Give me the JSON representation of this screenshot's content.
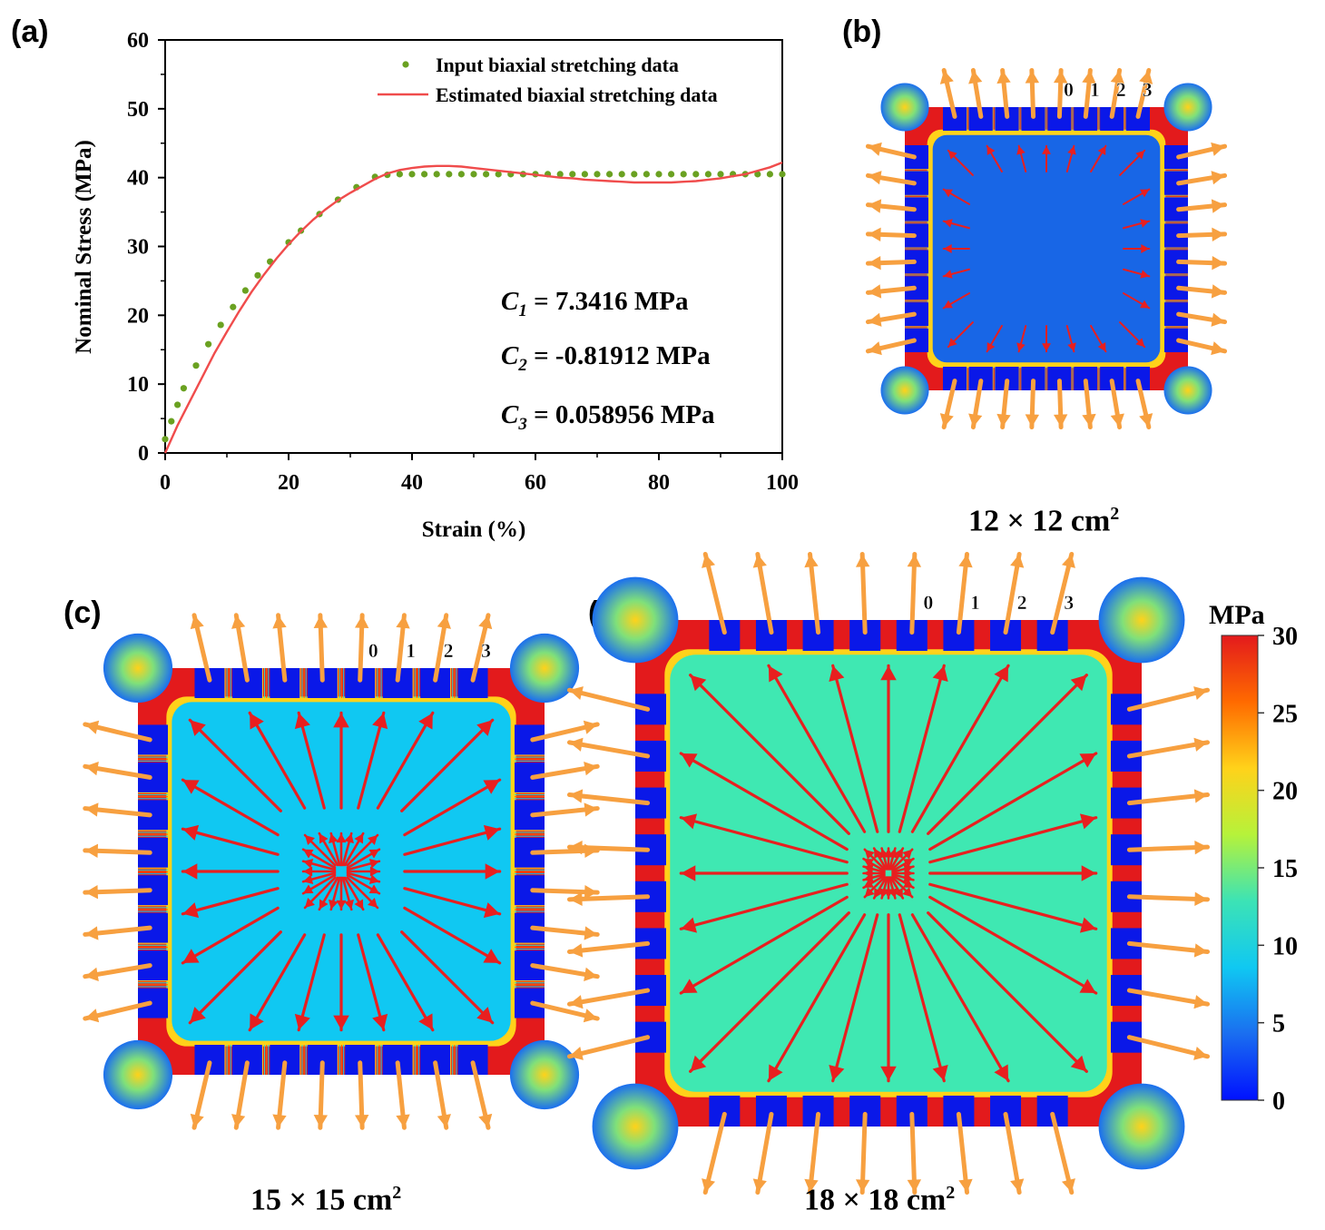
{
  "panels": {
    "a_label": "(a)",
    "b_label": "(b)",
    "c_label": "(c)",
    "d_label": "(d)"
  },
  "chart_data": {
    "type": "line",
    "title": "",
    "xlabel": "Strain (%)",
    "ylabel": "Nominal Stress (MPa)",
    "xlim": [
      0,
      100
    ],
    "ylim": [
      0,
      60
    ],
    "xticks": [
      "0",
      "20",
      "40",
      "60",
      "80",
      "100"
    ],
    "yticks": [
      "0",
      "10",
      "20",
      "30",
      "40",
      "50",
      "60"
    ],
    "legend_position": "top-right",
    "series": [
      {
        "name": "Input biaxial stretching data",
        "style": "scatter",
        "color": "#6aa121",
        "x": [
          0,
          1,
          2,
          3,
          5,
          7,
          9,
          11,
          13,
          15,
          17,
          20,
          22,
          25,
          28,
          31,
          34,
          36,
          38,
          40,
          42,
          44,
          46,
          48,
          50,
          52,
          54,
          56,
          58,
          60,
          62,
          64,
          66,
          68,
          70,
          72,
          74,
          76,
          78,
          80,
          82,
          84,
          86,
          88,
          90,
          92,
          94,
          96,
          98,
          100
        ],
        "y": [
          2,
          4.6,
          7,
          9.4,
          12.7,
          15.8,
          18.6,
          21.2,
          23.6,
          25.8,
          27.8,
          30.6,
          32.3,
          34.7,
          36.8,
          38.6,
          40.1,
          40.4,
          40.5,
          40.5,
          40.5,
          40.5,
          40.5,
          40.5,
          40.5,
          40.5,
          40.5,
          40.5,
          40.5,
          40.5,
          40.5,
          40.5,
          40.5,
          40.5,
          40.5,
          40.5,
          40.5,
          40.5,
          40.5,
          40.5,
          40.5,
          40.5,
          40.5,
          40.5,
          40.5,
          40.5,
          40.5,
          40.5,
          40.5,
          40.5
        ]
      },
      {
        "name": "Estimated biaxial  stretching data",
        "style": "line",
        "color": "#f04c4c",
        "x": [
          0,
          2,
          4,
          6,
          8,
          10,
          12,
          14,
          16,
          18,
          20,
          22,
          24,
          26,
          28,
          30,
          32,
          34,
          36,
          38,
          40,
          42,
          44,
          46,
          48,
          50,
          52,
          54,
          56,
          58,
          60,
          62,
          64,
          66,
          68,
          70,
          72,
          74,
          76,
          78,
          80,
          82,
          84,
          86,
          88,
          90,
          92,
          94,
          96,
          98,
          100
        ],
        "y": [
          0,
          4,
          7.5,
          11,
          14.5,
          17.6,
          20.6,
          23.4,
          25.9,
          28.2,
          30.3,
          32.2,
          33.9,
          35.4,
          36.7,
          37.8,
          38.8,
          39.8,
          40.6,
          41.1,
          41.4,
          41.6,
          41.7,
          41.7,
          41.6,
          41.4,
          41.2,
          41,
          40.8,
          40.6,
          40.4,
          40.2,
          40,
          39.9,
          39.7,
          39.6,
          39.5,
          39.4,
          39.3,
          39.3,
          39.3,
          39.3,
          39.4,
          39.5,
          39.7,
          39.9,
          40.2,
          40.5,
          41,
          41.5,
          42.2
        ]
      }
    ],
    "annotations": [
      {
        "symbol": "C",
        "sub": "1",
        "text": " = 7.3416 MPa"
      },
      {
        "symbol": "C",
        "sub": "2",
        "text": " = -0.81912 MPa"
      },
      {
        "symbol": "C",
        "sub": "3",
        "text": " = 0.058956 MPa"
      }
    ]
  },
  "simulations": [
    {
      "id": "b",
      "size": "12 × 12 cm",
      "sup": "2",
      "field": "#1866e6",
      "pad_labels": [
        "0",
        "1",
        "2",
        "3"
      ],
      "pads_per_side": 8,
      "inner_arrows": "short"
    },
    {
      "id": "c",
      "size": "15 × 15 cm",
      "sup": "2",
      "field": "#10c8f2",
      "pad_labels": [
        "0",
        "1",
        "2",
        "3"
      ],
      "pads_per_side": 8,
      "inner_arrows": "medium"
    },
    {
      "id": "d",
      "size": "18 × 18 cm",
      "sup": "2",
      "field": "#3fe8b2",
      "pad_labels": [
        "0",
        "1",
        "2",
        "3"
      ],
      "pads_per_side": 8,
      "inner_arrows": "long"
    }
  ],
  "colorbar": {
    "unit": "MPa",
    "ticks": [
      "30",
      "25",
      "20",
      "15",
      "10",
      "5",
      "0"
    ],
    "colors": [
      "#e31a1c",
      "#ff6a00",
      "#ffd21a",
      "#b6f23a",
      "#3ce3b5",
      "#10c8f2",
      "#1a6ef0",
      "#0011ff"
    ]
  }
}
